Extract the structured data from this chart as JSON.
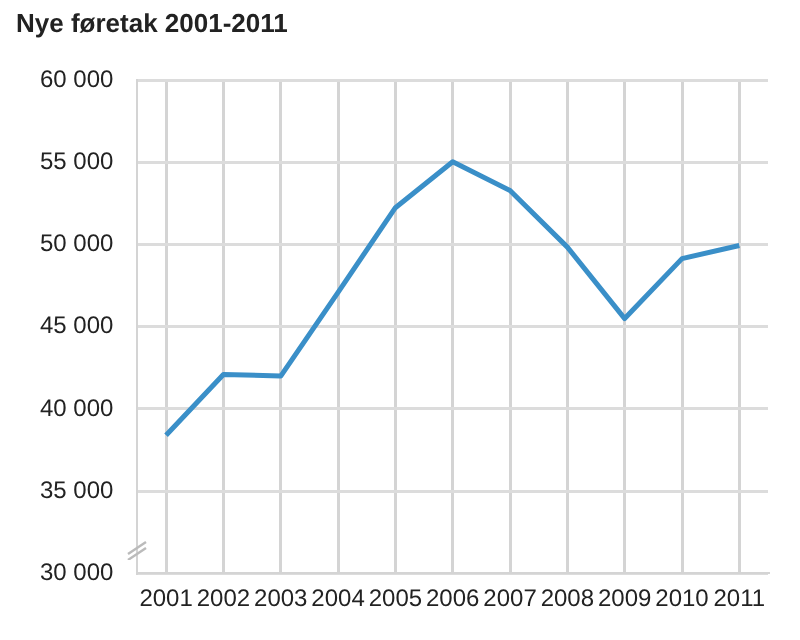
{
  "chart_data": {
    "type": "line",
    "title": "Nye føretak 2001-2011",
    "categories": [
      "2001",
      "2002",
      "2003",
      "2004",
      "2005",
      "2006",
      "2007",
      "2008",
      "2009",
      "2010",
      "2011"
    ],
    "series": [
      {
        "color": "#3a8fc8",
        "values": [
          38400,
          42100,
          42000,
          47100,
          52250,
          55050,
          53300,
          49850,
          45500,
          49150,
          49950
        ]
      }
    ],
    "ylim": [
      30000,
      60000
    ],
    "yticks": [
      {
        "value": 30000,
        "label": "30 000"
      },
      {
        "value": 35000,
        "label": "35 000"
      },
      {
        "value": 40000,
        "label": "40 000"
      },
      {
        "value": 45000,
        "label": "45 000"
      },
      {
        "value": 50000,
        "label": "50 000"
      },
      {
        "value": 55000,
        "label": "55 000"
      },
      {
        "value": 60000,
        "label": "60 000"
      }
    ],
    "grid": true,
    "legend": false,
    "marker": "none",
    "line_style": "solid"
  }
}
